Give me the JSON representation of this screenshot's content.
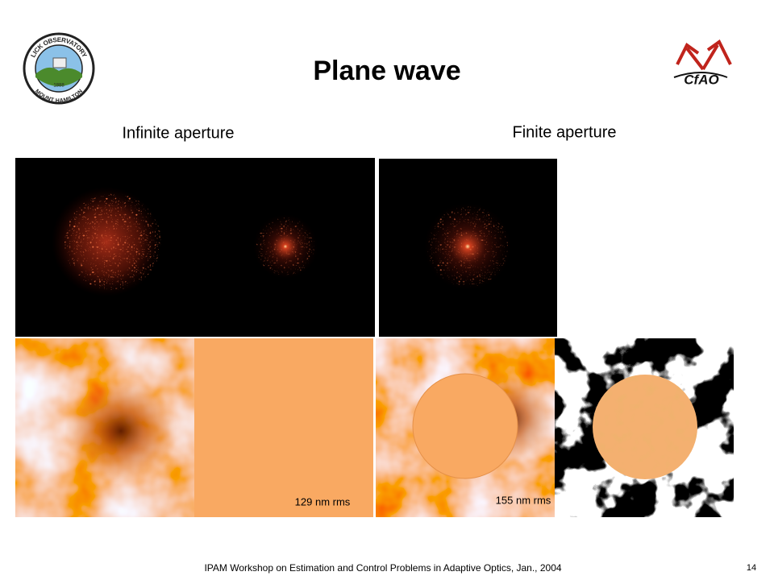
{
  "header": {
    "title": "Plane wave",
    "left_logo": {
      "top_text": "LICK OBSERVATORY",
      "bottom_text": "MOUNT HAMILTON",
      "year": "1888"
    },
    "right_logo": {
      "text": "CfAO"
    }
  },
  "columns": {
    "left": "Infinite aperture",
    "right": "Finite aperture"
  },
  "panels": {
    "flat_caption": "129 nm rms",
    "finite_caption": "155 nm rms"
  },
  "footer": {
    "text": "IPAM Workshop on Estimation and Control Problems in Adaptive Optics, Jan., 2004",
    "page": "14"
  }
}
